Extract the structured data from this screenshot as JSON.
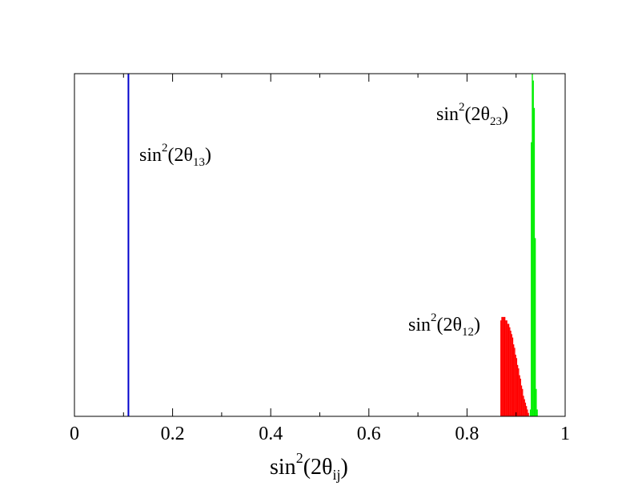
{
  "chart_data": {
    "type": "histogram",
    "xlabel": {
      "base": "sin",
      "sup": "2",
      "mid": "(2θ",
      "sub": "ij",
      "end": ")"
    },
    "xlim": [
      0,
      1
    ],
    "ylim": [
      0,
      1
    ],
    "y_ticks_labeled": false,
    "x_ticks": [
      {
        "value": 0,
        "label": "0"
      },
      {
        "value": 0.2,
        "label": "0.2"
      },
      {
        "value": 0.4,
        "label": "0.4"
      },
      {
        "value": 0.6,
        "label": "0.6"
      },
      {
        "value": 0.8,
        "label": "0.8"
      },
      {
        "value": 1,
        "label": "1"
      }
    ],
    "x_minor_ticks": [
      0.1,
      0.3,
      0.5,
      0.7,
      0.9
    ],
    "series": [
      {
        "name": {
          "base": "sin",
          "sup": "2",
          "mid": "(2θ",
          "sub": "13",
          "end": ")"
        },
        "color": "#0000cc",
        "kind": "line",
        "x": 0.11,
        "y": 1.0
      },
      {
        "name": {
          "base": "sin",
          "sup": "2",
          "mid": "(2θ",
          "sub": "23",
          "end": ")"
        },
        "color": "#00ee00",
        "kind": "histogram",
        "bins": [
          {
            "x": 0.928,
            "y": 0.02
          },
          {
            "x": 0.93,
            "y": 0.8
          },
          {
            "x": 0.932,
            "y": 1.0
          },
          {
            "x": 0.934,
            "y": 0.98
          },
          {
            "x": 0.936,
            "y": 0.9
          },
          {
            "x": 0.938,
            "y": 0.52
          },
          {
            "x": 0.94,
            "y": 0.08
          },
          {
            "x": 0.942,
            "y": 0.02
          }
        ]
      },
      {
        "name": {
          "base": "sin",
          "sup": "2",
          "mid": "(2θ",
          "sub": "12",
          "end": ")"
        },
        "color": "#ff0000",
        "kind": "histogram",
        "bins": [
          {
            "x": 0.868,
            "y": 0.28
          },
          {
            "x": 0.87,
            "y": 0.29
          },
          {
            "x": 0.872,
            "y": 0.29
          },
          {
            "x": 0.874,
            "y": 0.29
          },
          {
            "x": 0.876,
            "y": 0.29
          },
          {
            "x": 0.878,
            "y": 0.28
          },
          {
            "x": 0.88,
            "y": 0.28
          },
          {
            "x": 0.882,
            "y": 0.27
          },
          {
            "x": 0.884,
            "y": 0.27
          },
          {
            "x": 0.886,
            "y": 0.26
          },
          {
            "x": 0.888,
            "y": 0.25
          },
          {
            "x": 0.89,
            "y": 0.24
          },
          {
            "x": 0.892,
            "y": 0.23
          },
          {
            "x": 0.894,
            "y": 0.21
          },
          {
            "x": 0.896,
            "y": 0.2
          },
          {
            "x": 0.898,
            "y": 0.18
          },
          {
            "x": 0.9,
            "y": 0.17
          },
          {
            "x": 0.902,
            "y": 0.15
          },
          {
            "x": 0.904,
            "y": 0.14
          },
          {
            "x": 0.906,
            "y": 0.12
          },
          {
            "x": 0.908,
            "y": 0.11
          },
          {
            "x": 0.91,
            "y": 0.09
          },
          {
            "x": 0.912,
            "y": 0.08
          },
          {
            "x": 0.914,
            "y": 0.06
          },
          {
            "x": 0.916,
            "y": 0.05
          },
          {
            "x": 0.918,
            "y": 0.04
          },
          {
            "x": 0.92,
            "y": 0.03
          },
          {
            "x": 0.922,
            "y": 0.02
          },
          {
            "x": 0.924,
            "y": 0.01
          }
        ]
      }
    ]
  }
}
